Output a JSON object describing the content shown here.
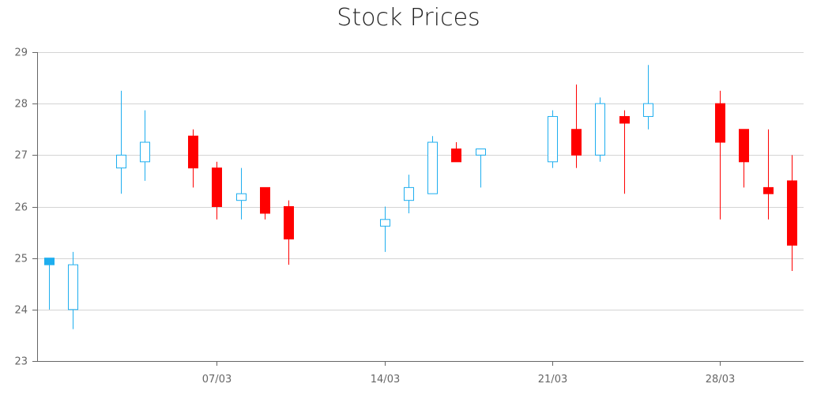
{
  "chart_data": {
    "type": "candlestick",
    "title": "Stock Prices",
    "xlabel": "",
    "ylabel": "",
    "ylim": [
      23,
      29
    ],
    "yticks": [
      23,
      24,
      25,
      26,
      27,
      28,
      29
    ],
    "x_range": [
      "2014-02-28",
      "2014-03-31"
    ],
    "xticks": [
      {
        "date": "2014-03-07",
        "label": "07/03"
      },
      {
        "date": "2014-03-14",
        "label": "14/03"
      },
      {
        "date": "2014-03-21",
        "label": "21/03"
      },
      {
        "date": "2014-03-28",
        "label": "28/03"
      }
    ],
    "grid": true,
    "legend": "none",
    "colors": {
      "increasing": "#1eaeef",
      "decreasing": "#ff0000",
      "first_bar": "#1eaeef"
    },
    "candles": [
      {
        "date": "2014-02-28",
        "open": 24.87,
        "high": 25.0,
        "low": 24.0,
        "close": 25.0,
        "filled": true
      },
      {
        "date": "2014-03-01",
        "open": 24.0,
        "high": 25.12,
        "low": 23.62,
        "close": 24.87
      },
      {
        "date": "2014-03-03",
        "open": 26.75,
        "high": 28.25,
        "low": 26.25,
        "close": 27.0
      },
      {
        "date": "2014-03-04",
        "open": 26.87,
        "high": 27.87,
        "low": 26.5,
        "close": 27.25
      },
      {
        "date": "2014-03-06",
        "open": 27.37,
        "high": 27.5,
        "low": 26.37,
        "close": 26.75
      },
      {
        "date": "2014-03-07",
        "open": 26.75,
        "high": 26.87,
        "low": 25.75,
        "close": 26.0
      },
      {
        "date": "2014-03-08",
        "open": 26.12,
        "high": 26.75,
        "low": 25.75,
        "close": 26.25
      },
      {
        "date": "2014-03-09",
        "open": 26.37,
        "high": 26.37,
        "low": 25.75,
        "close": 25.87
      },
      {
        "date": "2014-03-10",
        "open": 26.0,
        "high": 26.12,
        "low": 24.87,
        "close": 25.37
      },
      {
        "date": "2014-03-14",
        "open": 25.62,
        "high": 26.0,
        "low": 25.12,
        "close": 25.75
      },
      {
        "date": "2014-03-15",
        "open": 26.12,
        "high": 26.62,
        "low": 25.87,
        "close": 26.37
      },
      {
        "date": "2014-03-16",
        "open": 26.25,
        "high": 27.37,
        "low": 26.25,
        "close": 27.25
      },
      {
        "date": "2014-03-17",
        "open": 27.12,
        "high": 27.25,
        "low": 26.87,
        "close": 26.87
      },
      {
        "date": "2014-03-18",
        "open": 27.0,
        "high": 27.12,
        "low": 26.37,
        "close": 27.12
      },
      {
        "date": "2014-03-21",
        "open": 26.87,
        "high": 27.87,
        "low": 26.75,
        "close": 27.75
      },
      {
        "date": "2014-03-22",
        "open": 27.5,
        "high": 28.37,
        "low": 26.75,
        "close": 27.0
      },
      {
        "date": "2014-03-23",
        "open": 27.0,
        "high": 28.12,
        "low": 26.87,
        "close": 28.0
      },
      {
        "date": "2014-03-24",
        "open": 27.75,
        "high": 27.87,
        "low": 26.25,
        "close": 27.62
      },
      {
        "date": "2014-03-25",
        "open": 27.75,
        "high": 28.75,
        "low": 27.5,
        "close": 28.0
      },
      {
        "date": "2014-03-28",
        "open": 28.0,
        "high": 28.25,
        "low": 25.75,
        "close": 27.25
      },
      {
        "date": "2014-03-29",
        "open": 27.5,
        "high": 27.5,
        "low": 26.37,
        "close": 26.87
      },
      {
        "date": "2014-03-30",
        "open": 26.37,
        "high": 27.5,
        "low": 25.75,
        "close": 26.25
      },
      {
        "date": "2014-03-31",
        "open": 26.5,
        "high": 27.0,
        "low": 24.75,
        "close": 25.25
      }
    ]
  }
}
